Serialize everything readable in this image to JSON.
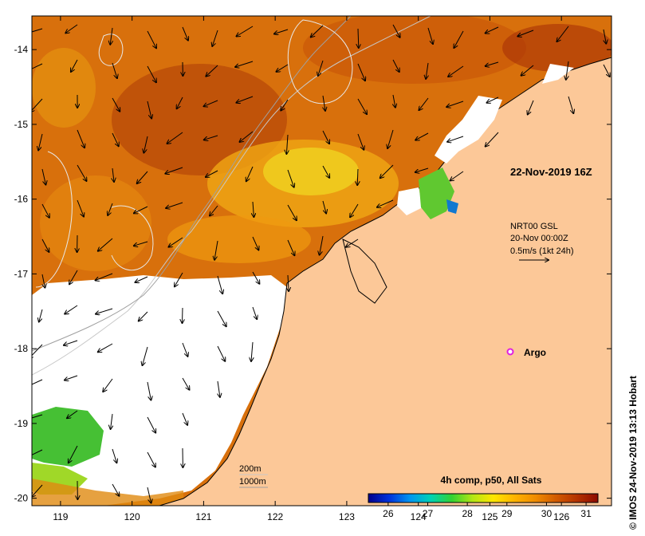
{
  "map": {
    "timestamp": "22-Nov-2019 16Z",
    "current_source": "NRT00 GSL",
    "current_time": "20-Nov 00:00Z",
    "scale_arrow_label": "0.5m/s (1kt 24h)",
    "argo_label": "Argo",
    "isobath_labels": [
      "200m",
      "1000m"
    ],
    "credit": "© IMOS 24-Nov-2019 13:13 Hobart",
    "lat_ticks": [
      "-14",
      "-15",
      "-16",
      "-17",
      "-18",
      "-19",
      "-20"
    ],
    "lon_ticks": [
      "119",
      "120",
      "121",
      "122",
      "123",
      "124",
      "125",
      "126"
    ],
    "lat_values": [
      -14,
      -15,
      -16,
      -17,
      -18,
      -19,
      -20
    ],
    "lon_values": [
      119,
      120,
      121,
      122,
      123,
      124,
      125,
      126
    ],
    "lon_range": [
      118.6,
      126.7
    ],
    "lat_range": [
      -20.1,
      -13.55
    ]
  },
  "colorbar": {
    "title": "4h comp, p50, All Sats",
    "ticks": [
      "26",
      "27",
      "28",
      "29",
      "30",
      "31"
    ],
    "tick_values": [
      26,
      27,
      28,
      29,
      30,
      31
    ],
    "range": [
      25.5,
      31.3
    ],
    "colors": [
      "#00008c",
      "#0032dc",
      "#0096f0",
      "#00d2b4",
      "#32d232",
      "#b4e614",
      "#ffe600",
      "#ffb400",
      "#f08c00",
      "#d25a00",
      "#b43200",
      "#8c0a00"
    ]
  },
  "colors": {
    "land": "#fcc898",
    "no_data": "#ffffff",
    "sst_warm": "#d86a0c",
    "sst_hot": "#b84a08",
    "sst_mid": "#f09a10",
    "sst_cool": "#f0d020",
    "sst_green": "#30c030",
    "isobath_200": "#c8c8c8",
    "isobath_1000": "#a0a0a0",
    "argo": "#e020e0"
  }
}
